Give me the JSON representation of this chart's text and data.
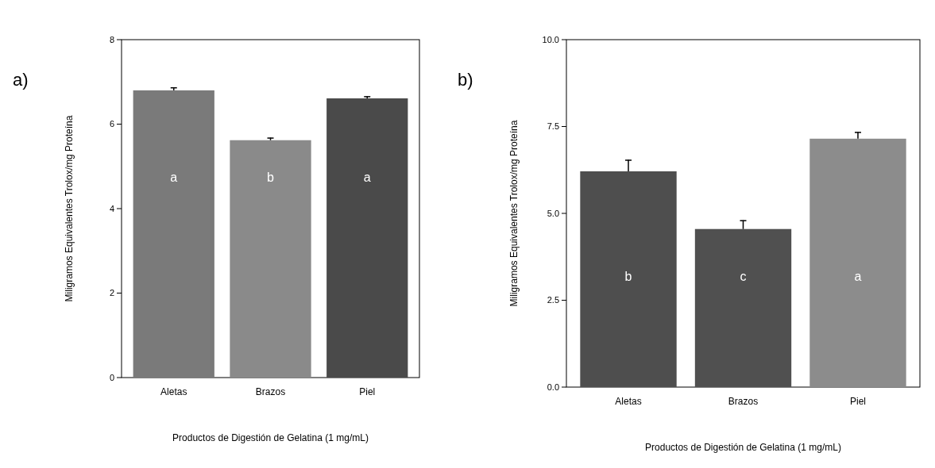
{
  "chart_data": [
    {
      "type": "bar",
      "xlabel": "Productos de Digestión de Gelatina (1 mg/mL)",
      "ylabel": "Miligramos Equivalentes Trolox/mg Proteína",
      "categories": [
        "Aletas",
        "Brazos",
        "Piel"
      ],
      "values": [
        6.8,
        5.62,
        6.61
      ],
      "errors": [
        0.06,
        0.05,
        0.04
      ],
      "colors": [
        "#7a7a7a",
        "#8a8a8a",
        "#4a4a4a"
      ],
      "ylim": [
        0,
        8
      ],
      "yticks": [
        0,
        2,
        4,
        6,
        8
      ],
      "annotations": [
        "a)",
        "a",
        "b",
        "a"
      ]
    },
    {
      "type": "bar",
      "xlabel": "Productos de Digestión de Gelatina (1 mg/mL)",
      "ylabel": "Miligramos Equivalentes Trolox/mg Proteína",
      "categories": [
        "Aletas",
        "Brazos",
        "Piel"
      ],
      "values": [
        6.21,
        4.55,
        7.15
      ],
      "errors": [
        0.32,
        0.24,
        0.18
      ],
      "colors": [
        "#4e4e4e",
        "#505050",
        "#8c8c8c"
      ],
      "ylim": [
        0,
        10
      ],
      "yticks": [
        {
          "value": 0,
          "label": "0.0"
        },
        {
          "value": 2.5,
          "label": "2.5"
        },
        {
          "value": 5,
          "label": "5.0"
        },
        {
          "value": 7.5,
          "label": "7.5"
        },
        {
          "value": 10,
          "label": "10.0"
        }
      ],
      "annotations": [
        "b)",
        "b",
        "c",
        "a"
      ]
    }
  ]
}
